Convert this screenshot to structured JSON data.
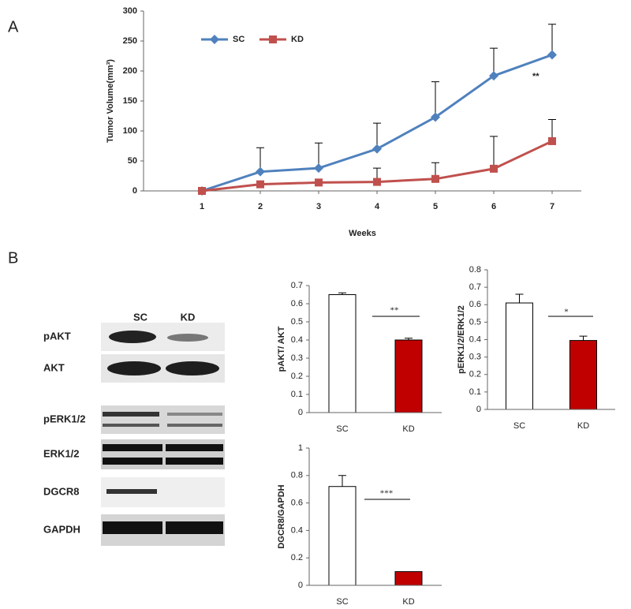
{
  "panels": [
    "A",
    "B"
  ],
  "blot": {
    "lanes": [
      "SC",
      "KD"
    ],
    "rows": [
      "pAKT",
      "AKT",
      "pERK1/2",
      "ERK1/2",
      "DGCR8",
      "GAPDH"
    ]
  },
  "chart_data": [
    {
      "type": "line",
      "xlabel": "Weeks",
      "ylabel": "Tumor Volume(mm³)",
      "x": [
        1,
        2,
        3,
        4,
        5,
        6,
        7
      ],
      "xlim": [
        0,
        7.5
      ],
      "xticks": [
        1,
        2,
        3,
        4,
        5,
        6,
        7
      ],
      "ylim": [
        0,
        300
      ],
      "yticks": [
        0,
        50,
        100,
        150,
        200,
        250,
        300
      ],
      "legend": "top-left",
      "annotation": "**",
      "series": [
        {
          "name": "SC",
          "color": "#4f81bd",
          "marker": "diamond",
          "values": [
            0,
            32,
            38,
            70,
            123,
            192,
            227
          ],
          "errors": [
            null,
            40,
            42,
            43,
            59,
            46,
            51
          ]
        },
        {
          "name": "KD",
          "color": "#c0504d",
          "marker": "square",
          "values": [
            0,
            11,
            14,
            15,
            20,
            37,
            83
          ],
          "errors": [
            null,
            null,
            null,
            23,
            27,
            54,
            36
          ]
        }
      ]
    },
    {
      "type": "bar",
      "ylabel": "pAKT/ AKT",
      "categories": [
        "SC",
        "KD"
      ],
      "values": [
        0.65,
        0.4
      ],
      "errors": [
        0.01,
        0.01
      ],
      "colors": [
        "#ffffff",
        "#c00000"
      ],
      "ylim": [
        0,
        0.7
      ],
      "yticks": [
        0,
        0.1,
        0.2,
        0.3,
        0.4,
        0.5,
        0.6,
        0.7
      ],
      "annotation": "**"
    },
    {
      "type": "bar",
      "ylabel": "pERK1/2/ERK1/2",
      "categories": [
        "SC",
        "KD"
      ],
      "values": [
        0.61,
        0.395
      ],
      "errors": [
        0.05,
        0.025
      ],
      "colors": [
        "#ffffff",
        "#c00000"
      ],
      "ylim": [
        0,
        0.8
      ],
      "yticks": [
        0,
        0.1,
        0.2,
        0.3,
        0.4,
        0.5,
        0.6,
        0.7,
        0.8
      ],
      "annotation": "*"
    },
    {
      "type": "bar",
      "ylabel": "DGCR8/GAPDH",
      "categories": [
        "SC",
        "KD"
      ],
      "values": [
        0.72,
        0.1
      ],
      "errors": [
        0.08,
        null
      ],
      "colors": [
        "#ffffff",
        "#c00000"
      ],
      "ylim": [
        0,
        1
      ],
      "yticks": [
        0,
        0.2,
        0.4,
        0.6,
        0.8,
        1
      ],
      "annotation": "***"
    }
  ]
}
